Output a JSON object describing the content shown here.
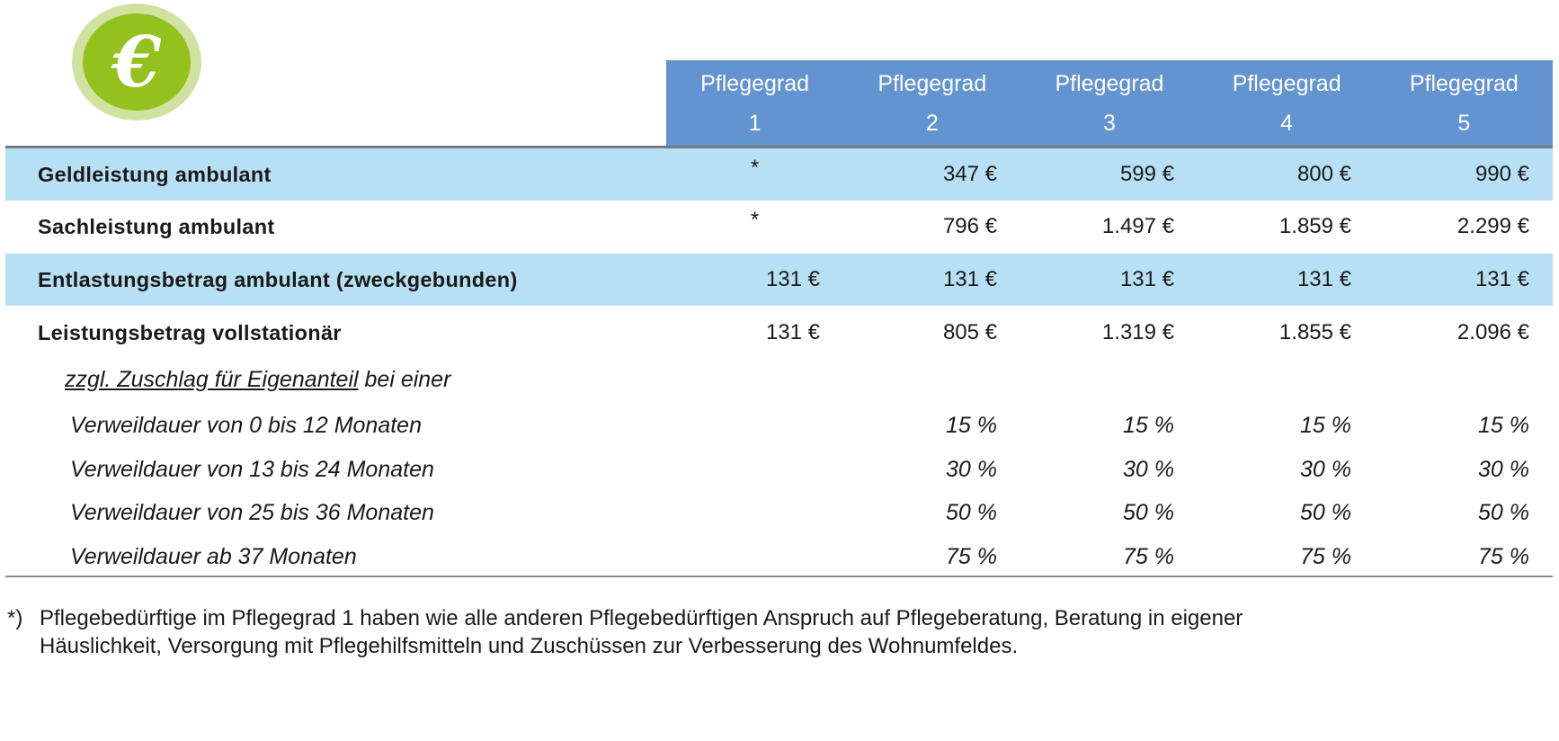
{
  "logo": {
    "symbol": "€",
    "colors": {
      "outer": "#d0e2a0",
      "inner": "#95c11f"
    }
  },
  "colors": {
    "header": "#6393d0",
    "row_highlight": "#b8e0f5"
  },
  "header": {
    "columns": [
      {
        "line1": "Pflegegrad",
        "line2": "1"
      },
      {
        "line1": "Pflegegrad",
        "line2": "2"
      },
      {
        "line1": "Pflegegrad",
        "line2": "3"
      },
      {
        "line1": "Pflegegrad",
        "line2": "4"
      },
      {
        "line1": "Pflegegrad",
        "line2": "5"
      }
    ]
  },
  "rows": [
    {
      "label": "Geldleistung ambulant",
      "values": [
        "*",
        "347 €",
        "599 €",
        "800 €",
        "990 €"
      ]
    },
    {
      "label": "Sachleistung ambulant",
      "values": [
        "*",
        "796 €",
        "1.497 €",
        "1.859 €",
        "2.299 €"
      ]
    },
    {
      "label": "Entlastungsbetrag ambulant (zweckgebunden)",
      "values": [
        "131 €",
        "131 €",
        "131 €",
        "131 €",
        "131 €"
      ]
    },
    {
      "label": "Leistungsbetrag vollstationär",
      "values": [
        "131 €",
        "805 €",
        "1.319 €",
        "1.855 €",
        "2.096 €"
      ]
    }
  ],
  "supplement": {
    "underlined": "zzgl. Zuschlag für Eigenanteil",
    "rest": " bei einer"
  },
  "stay_rows": [
    {
      "label": "Verweildauer von 0 bis 12 Monaten",
      "values": [
        "15 %",
        "15 %",
        "15 %",
        "15 %"
      ]
    },
    {
      "label": "Verweildauer von 13 bis 24 Monaten",
      "values": [
        "30 %",
        "30 %",
        "30 %",
        "30 %"
      ]
    },
    {
      "label": "Verweildauer von 25 bis 36 Monaten",
      "values": [
        "50 %",
        "50 %",
        "50 %",
        "50 %"
      ]
    },
    {
      "label": "Verweildauer ab 37 Monaten",
      "values": [
        "75 %",
        "75 %",
        "75 %",
        "75 %"
      ]
    }
  ],
  "footnote": {
    "marker": "*)",
    "line1": "Pflegebedürftige im Pflegegrad 1 haben wie alle anderen Pflegebedürftigen Anspruch auf Pflegeberatung, Beratung in eigener",
    "line2": "Häuslichkeit, Versorgung mit Pflegehilfsmitteln und Zuschüssen zur Verbesserung des Wohnumfeldes."
  }
}
